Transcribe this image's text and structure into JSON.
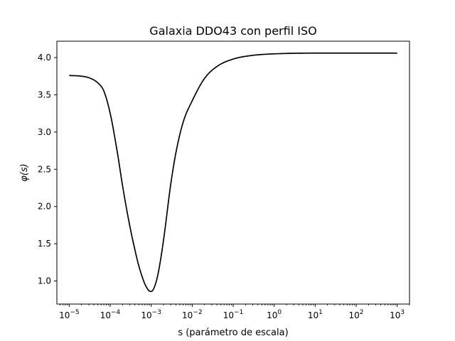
{
  "chart_data": {
    "type": "line",
    "title": "Galaxia DDO43 con perfil ISO",
    "xlabel": "s (parámetro de escala)",
    "ylabel": "φ(s)",
    "x_scale": "log",
    "xlim": [
      5e-06,
      2000.0
    ],
    "ylim": [
      0.69,
      4.22
    ],
    "x_ticks": [
      {
        "value": 1e-05,
        "base": "10",
        "exp": "−5"
      },
      {
        "value": 0.0001,
        "base": "10",
        "exp": "−4"
      },
      {
        "value": 0.001,
        "base": "10",
        "exp": "−3"
      },
      {
        "value": 0.01,
        "base": "10",
        "exp": "−2"
      },
      {
        "value": 0.1,
        "base": "10",
        "exp": "−1"
      },
      {
        "value": 1.0,
        "base": "10",
        "exp": "0"
      },
      {
        "value": 10.0,
        "base": "10",
        "exp": "1"
      },
      {
        "value": 100.0,
        "base": "10",
        "exp": "2"
      },
      {
        "value": 1000.0,
        "base": "10",
        "exp": "3"
      }
    ],
    "y_ticks": [
      {
        "value": 1.0,
        "label": "1.0"
      },
      {
        "value": 1.5,
        "label": "1.5"
      },
      {
        "value": 2.0,
        "label": "2.0"
      },
      {
        "value": 2.5,
        "label": "2.5"
      },
      {
        "value": 3.0,
        "label": "3.0"
      },
      {
        "value": 3.5,
        "label": "3.5"
      },
      {
        "value": 4.0,
        "label": "4.0"
      }
    ],
    "grid": false,
    "series": [
      {
        "color": "#000000",
        "x": [
          1e-05,
          2e-05,
          3e-05,
          5e-05,
          7e-05,
          0.0001,
          0.00015,
          0.0002,
          0.0003,
          0.0004,
          0.0005,
          0.0006,
          0.0007,
          0.0008,
          0.0009,
          0.001,
          0.0012,
          0.0015,
          0.002,
          0.003,
          0.004,
          0.006,
          0.01,
          0.02,
          0.04,
          0.1,
          0.3,
          1.0,
          10.0,
          100.0,
          1000.0
        ],
        "y": [
          3.76,
          3.75,
          3.73,
          3.66,
          3.55,
          3.25,
          2.72,
          2.28,
          1.74,
          1.42,
          1.2,
          1.06,
          0.96,
          0.9,
          0.865,
          0.86,
          0.92,
          1.12,
          1.55,
          2.3,
          2.72,
          3.13,
          3.42,
          3.72,
          3.88,
          3.98,
          4.03,
          4.05,
          4.06,
          4.06,
          4.06
        ]
      }
    ]
  }
}
